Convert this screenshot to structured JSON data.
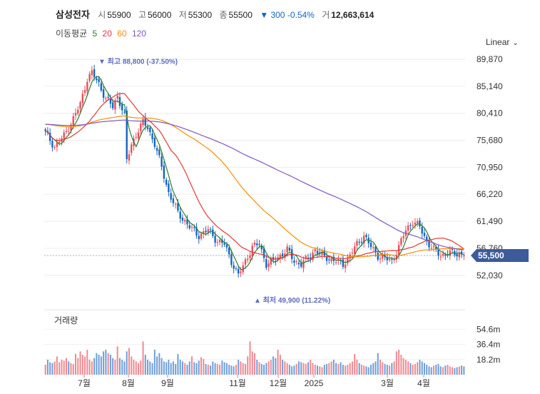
{
  "header": {
    "name": "삼성전자",
    "open_label": "시",
    "open": "55900",
    "high_label": "고",
    "high": "56000",
    "low_label": "저",
    "low": "55300",
    "close_label": "종",
    "close": "55500",
    "change": "▼ 300 -0.54%",
    "volume_label": "거",
    "volume": "12,663,614"
  },
  "ma_legend": {
    "label": "이동평균",
    "items": [
      {
        "label": "5",
        "color": "#2e7d32"
      },
      {
        "label": "20",
        "color": "#e53935"
      },
      {
        "label": "60",
        "color": "#fb8c00"
      },
      {
        "label": "120",
        "color": "#7e57c2"
      }
    ]
  },
  "scale_toggle": {
    "label": "Linear"
  },
  "volume_panel": {
    "title": "거래량"
  },
  "colors": {
    "up": "#e8505b",
    "down": "#1565c0",
    "price_tag_bg": "#3d5a99",
    "annotation": "#5c6bc0"
  },
  "chart_data": {
    "type": "candlestick",
    "y_ticks": [
      "89,870",
      "85,140",
      "80,410",
      "75,680",
      "70,950",
      "66,220",
      "61,490",
      "56,760",
      "52,030"
    ],
    "y_tick_values": [
      89870,
      85140,
      80410,
      75680,
      70950,
      66220,
      61490,
      56760,
      52030
    ],
    "ylim": [
      49000,
      91500
    ],
    "x_ticks": [
      "7월",
      "8월",
      "9월",
      "11월",
      "12월",
      "2025",
      "3월",
      "4월"
    ],
    "x_tick_positions": [
      118,
      180,
      235,
      333,
      390,
      440,
      543,
      594
    ],
    "last_price": "55,500",
    "annotations": {
      "high": {
        "text": "▼ 최고 88,800 (-37.50%)",
        "price": 88800
      },
      "low": {
        "text": "▲ 최저 49,900 (11.22%)",
        "price": 49900
      }
    },
    "close_path": [
      [
        0,
        77000
      ],
      [
        4,
        74500
      ],
      [
        8,
        76500
      ],
      [
        12,
        79500
      ],
      [
        15,
        82000
      ],
      [
        18,
        86500
      ],
      [
        20,
        87500
      ],
      [
        23,
        85500
      ],
      [
        26,
        83000
      ],
      [
        29,
        81500
      ],
      [
        31,
        83500
      ],
      [
        34,
        80000
      ],
      [
        35,
        72000
      ],
      [
        37,
        75000
      ],
      [
        40,
        77500
      ],
      [
        42,
        78800
      ],
      [
        44,
        78000
      ],
      [
        47,
        75000
      ],
      [
        50,
        71000
      ],
      [
        53,
        66500
      ],
      [
        57,
        63000
      ],
      [
        62,
        60500
      ],
      [
        66,
        59000
      ],
      [
        70,
        60000
      ],
      [
        74,
        58000
      ],
      [
        77,
        57500
      ],
      [
        80,
        54500
      ],
      [
        83,
        52000
      ],
      [
        86,
        54500
      ],
      [
        89,
        57000
      ],
      [
        92,
        57500
      ],
      [
        95,
        54000
      ],
      [
        98,
        54500
      ],
      [
        101,
        55500
      ],
      [
        104,
        56500
      ],
      [
        107,
        54500
      ],
      [
        110,
        54000
      ],
      [
        113,
        55000
      ],
      [
        116,
        56500
      ],
      [
        119,
        55500
      ],
      [
        122,
        55000
      ],
      [
        125,
        54500
      ],
      [
        128,
        54000
      ],
      [
        131,
        55500
      ],
      [
        134,
        57500
      ],
      [
        137,
        59000
      ],
      [
        140,
        57000
      ],
      [
        143,
        55500
      ],
      [
        146,
        55000
      ],
      [
        149,
        54500
      ],
      [
        152,
        57000
      ],
      [
        155,
        60000
      ],
      [
        158,
        61500
      ],
      [
        161,
        60500
      ],
      [
        164,
        58000
      ],
      [
        167,
        56500
      ],
      [
        170,
        55500
      ],
      [
        173,
        56000
      ],
      [
        176,
        55800
      ],
      [
        178,
        55900
      ],
      [
        180,
        55500
      ]
    ],
    "volumes_m": [
      12,
      18,
      15,
      14,
      16,
      22,
      15,
      18,
      17,
      20,
      16,
      14,
      13,
      25,
      20,
      28,
      24,
      22,
      30,
      18,
      16,
      20,
      26,
      24,
      22,
      28,
      30,
      26,
      24,
      20,
      18,
      34,
      20,
      18,
      16,
      28,
      32,
      22,
      18,
      16,
      14,
      17,
      40,
      24,
      18,
      16,
      14,
      30,
      22,
      26,
      20,
      16,
      15,
      18,
      14,
      16,
      13,
      25,
      18,
      16,
      14,
      12,
      16,
      22,
      15,
      14,
      17,
      21,
      19,
      13,
      12,
      11,
      16,
      14,
      13,
      12,
      17,
      15,
      14,
      12,
      11,
      10,
      12,
      18,
      16,
      14,
      13,
      22,
      40,
      28,
      26,
      18,
      15,
      13,
      12,
      14,
      16,
      18,
      22,
      20,
      30,
      24,
      18,
      16,
      14,
      12,
      10,
      11,
      13,
      16,
      15,
      14,
      13,
      15,
      18,
      14,
      12,
      11,
      10,
      9,
      12,
      13,
      14,
      16,
      18,
      14,
      13,
      15,
      12,
      11,
      12,
      14,
      16,
      25,
      18,
      14,
      12,
      11,
      10,
      9,
      12,
      14,
      16,
      26,
      18,
      15,
      13,
      12,
      11,
      14,
      16,
      28,
      30,
      24,
      20,
      18,
      16,
      14,
      12,
      13,
      15,
      18,
      16,
      14,
      12,
      10,
      9,
      11,
      12,
      13,
      10,
      9,
      11,
      12,
      10,
      9,
      8,
      9,
      10,
      11,
      10
    ],
    "volume_ticks": [
      "54.6m",
      "36.4m",
      "18.2m"
    ],
    "volume_tick_values": [
      54.6,
      36.4,
      18.2
    ],
    "volume_ylim": [
      0,
      60
    ]
  }
}
